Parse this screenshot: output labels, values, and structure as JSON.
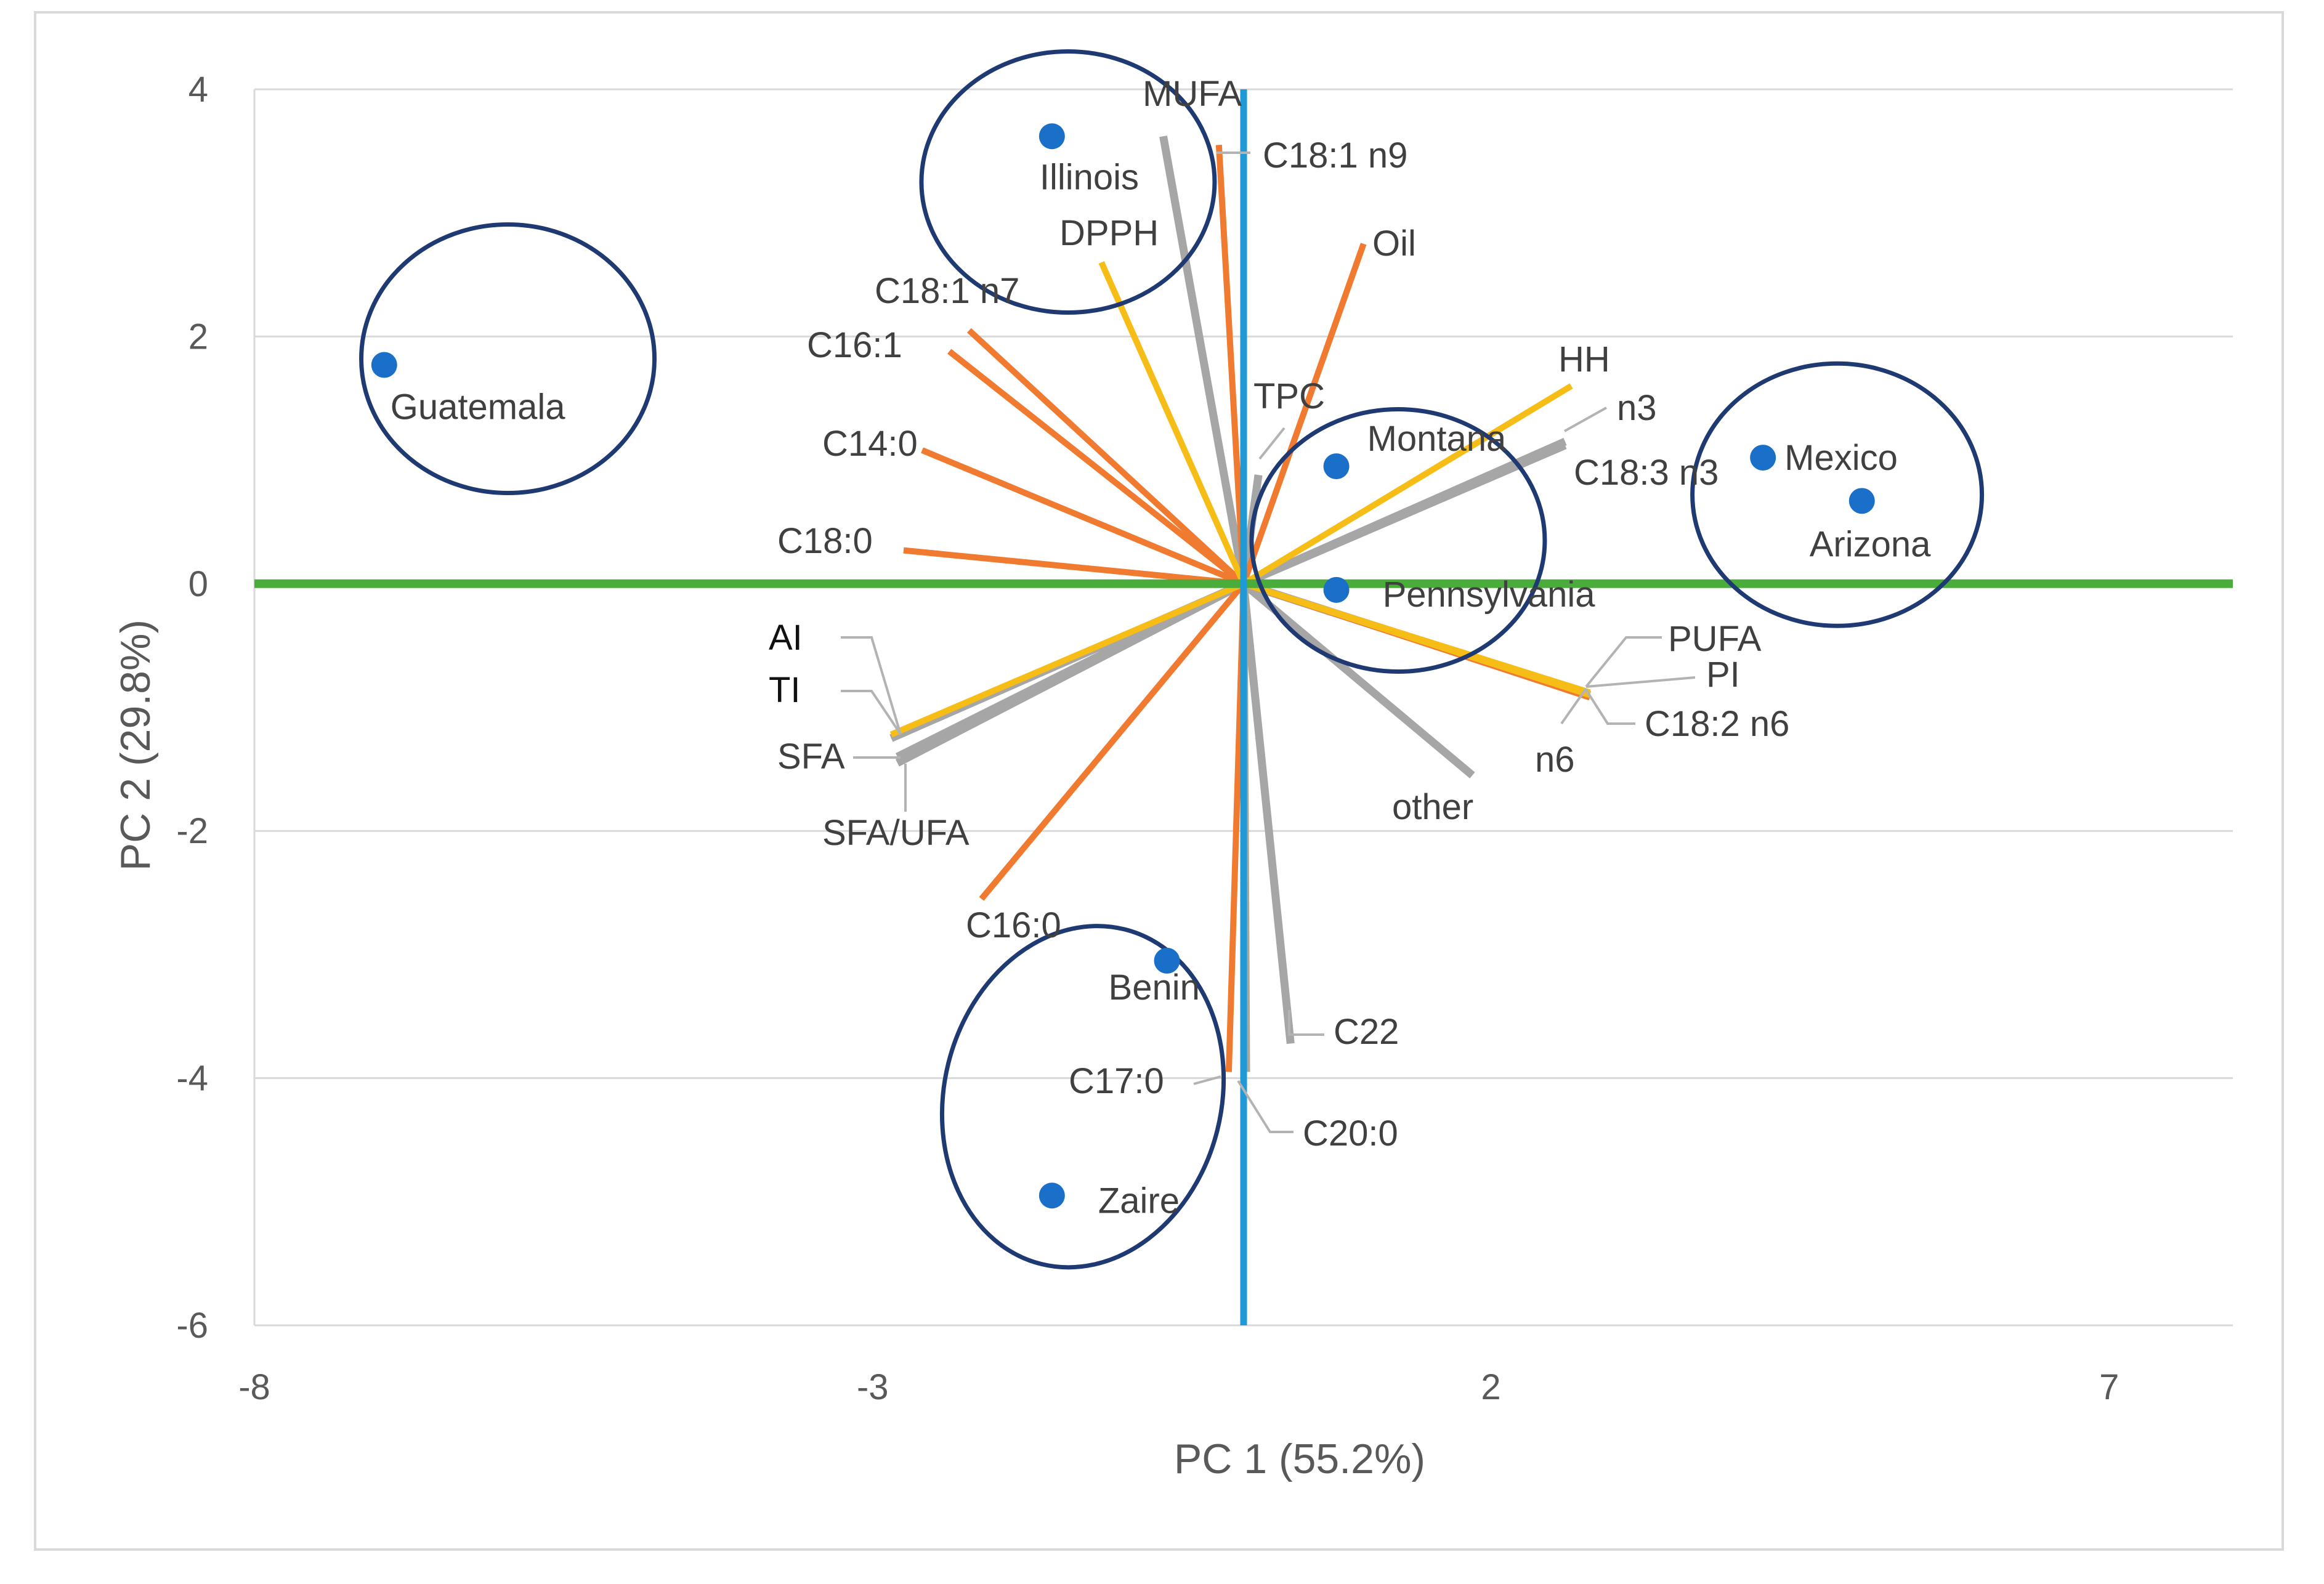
{
  "chart_data": {
    "type": "scatter",
    "subtype": "pca-biplot",
    "title": "",
    "xlabel": "PC 1 (55.2%)",
    "ylabel": "PC 2 (29.8%)",
    "xlim": [
      -8,
      8
    ],
    "ylim": [
      -6,
      4
    ],
    "xticks": [
      -8,
      -3,
      2,
      7
    ],
    "yticks": [
      4,
      2,
      0,
      -2,
      -4,
      -6
    ],
    "grid": "horizontal",
    "colors": {
      "axis_pc1": "#4aac3a",
      "axis_pc2": "#1f9ad6",
      "points": "#1a6fc9",
      "groups": "#1f3a72",
      "orange": "#f07a30",
      "yellow": "#f5bd16",
      "gray": "#a6a6a6",
      "tick_text": "#595959",
      "label_text": "#404040",
      "grid": "#d9d9d9",
      "leader": "#b3b3b3"
    },
    "scores": [
      {
        "name": "Illinois",
        "x": -1.55,
        "y": 3.62
      },
      {
        "name": "Guatemala",
        "x": -6.95,
        "y": 1.77
      },
      {
        "name": "Montana",
        "x": 0.75,
        "y": 0.95
      },
      {
        "name": "Pennsylvania",
        "x": 0.75,
        "y": -0.05
      },
      {
        "name": "Mexico",
        "x": 4.2,
        "y": 1.02
      },
      {
        "name": "Arizona",
        "x": 5.0,
        "y": 0.67
      },
      {
        "name": "Benin",
        "x": -0.62,
        "y": -3.05
      },
      {
        "name": "Zaire",
        "x": -1.55,
        "y": -4.95
      }
    ],
    "loadings": [
      {
        "name": "MUFA",
        "x": -0.65,
        "y": 3.62,
        "group": "gray"
      },
      {
        "name": "C18:1 n9",
        "x": -0.2,
        "y": 3.55,
        "group": "orange"
      },
      {
        "name": "Oil",
        "x": 0.97,
        "y": 2.75,
        "group": "orange"
      },
      {
        "name": "DPPH",
        "x": -1.15,
        "y": 2.6,
        "group": "yellow"
      },
      {
        "name": "C18:1 n7",
        "x": -2.22,
        "y": 2.05,
        "group": "orange"
      },
      {
        "name": "C16:1",
        "x": -2.38,
        "y": 1.88,
        "group": "orange"
      },
      {
        "name": "C14:0",
        "x": -2.6,
        "y": 1.08,
        "group": "orange"
      },
      {
        "name": "C18:0",
        "x": -2.75,
        "y": 0.27,
        "group": "orange"
      },
      {
        "name": "TPC",
        "x": 0.12,
        "y": 0.88,
        "group": "gray"
      },
      {
        "name": "HH",
        "x": 2.65,
        "y": 1.6,
        "group": "yellow"
      },
      {
        "name": "n3",
        "x": 2.6,
        "y": 1.15,
        "group": "gray"
      },
      {
        "name": "C18:3 n3",
        "x": 2.6,
        "y": 1.12,
        "group": "gray"
      },
      {
        "name": "PUFA",
        "x": 2.8,
        "y": -0.88,
        "group": "yellow"
      },
      {
        "name": "PI",
        "x": 2.8,
        "y": -0.9,
        "group": "yellow"
      },
      {
        "name": "C18:2 n6",
        "x": 2.8,
        "y": -0.92,
        "group": "orange"
      },
      {
        "name": "n6",
        "x": 2.8,
        "y": -0.9,
        "group": "gray"
      },
      {
        "name": "other",
        "x": 1.85,
        "y": -1.55,
        "group": "gray"
      },
      {
        "name": "AI",
        "x": -2.85,
        "y": -1.22,
        "group": "yellow"
      },
      {
        "name": "TI",
        "x": -2.85,
        "y": -1.25,
        "group": "gray"
      },
      {
        "name": "SFA",
        "x": -2.8,
        "y": -1.4,
        "group": "gray"
      },
      {
        "name": "SFA/UFA",
        "x": -2.8,
        "y": -1.45,
        "group": "gray"
      },
      {
        "name": "C16:0",
        "x": -2.12,
        "y": -2.55,
        "group": "orange"
      },
      {
        "name": "C22",
        "x": 0.38,
        "y": -3.72,
        "group": "gray"
      },
      {
        "name": "C17:0",
        "x": -0.12,
        "y": -3.95,
        "group": "orange"
      },
      {
        "name": "C20:0",
        "x": 0.02,
        "y": -3.95,
        "group": "gray"
      }
    ]
  }
}
